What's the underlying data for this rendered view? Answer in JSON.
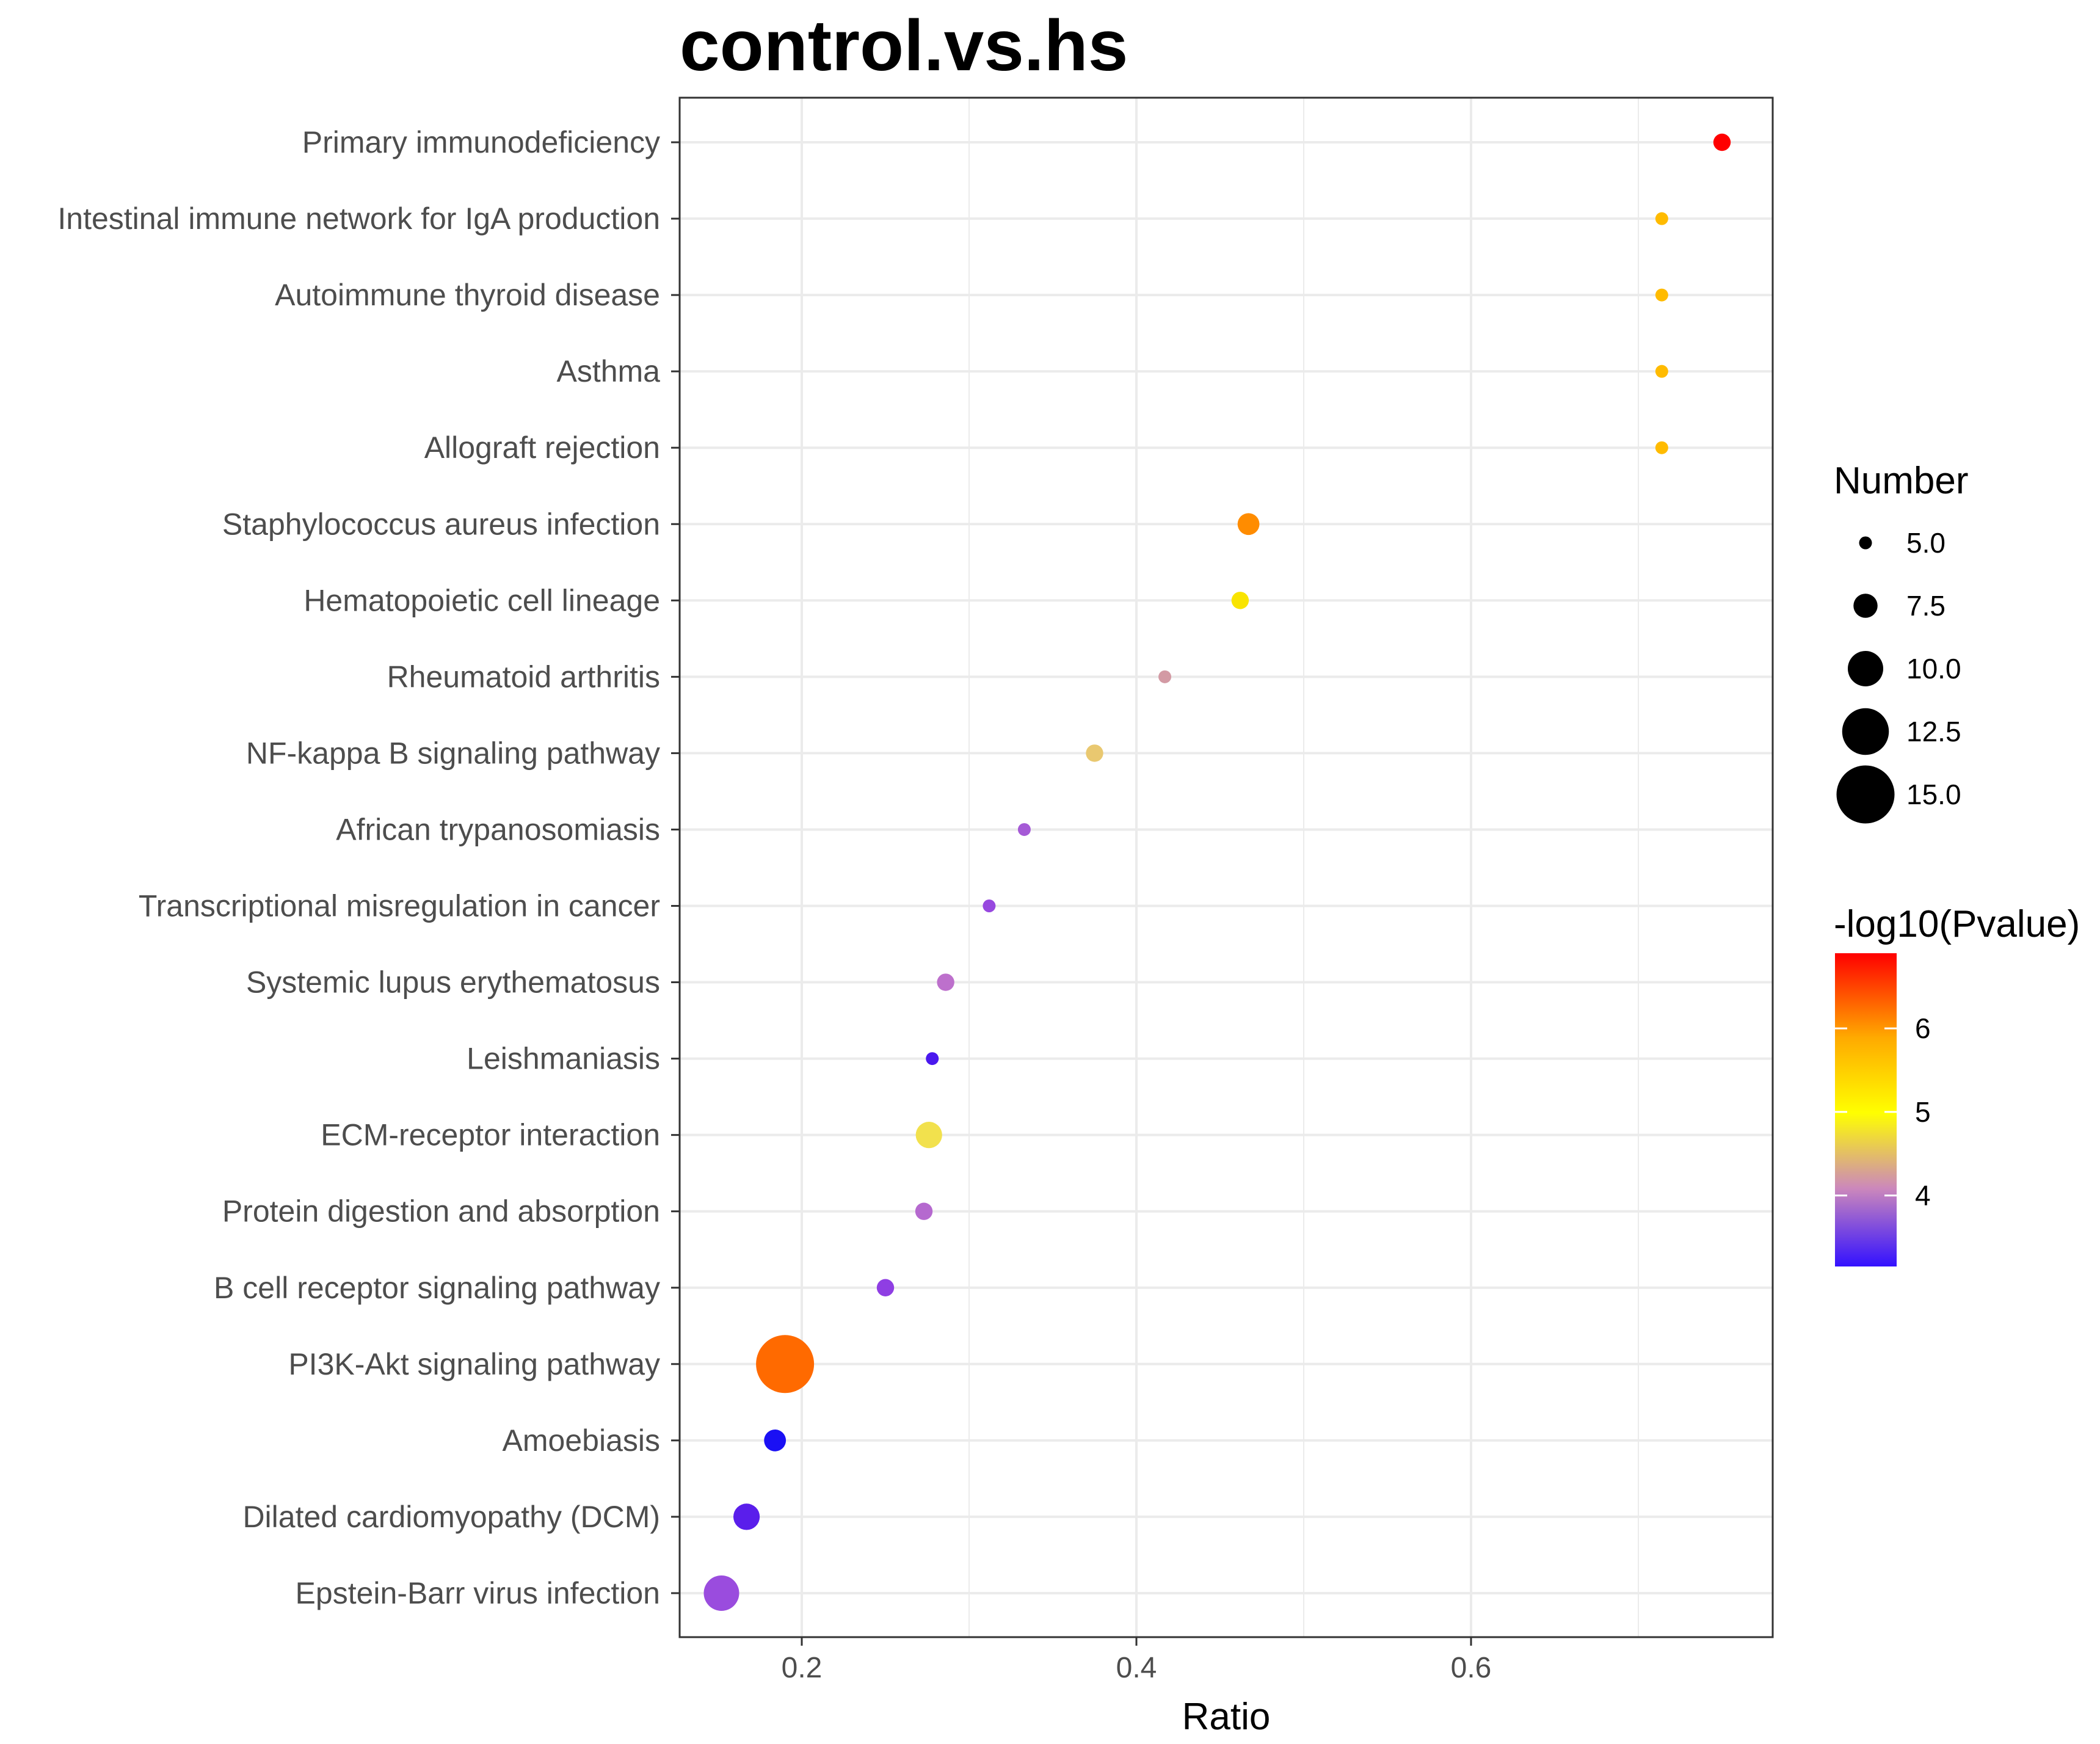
{
  "chart_data": {
    "type": "scatter",
    "title": "control.vs.hs",
    "xlabel": "Ratio",
    "ylabel": "",
    "xlim": [
      0.125,
      0.78
    ],
    "xticks": [
      0.2,
      0.4,
      0.6
    ],
    "xtick_labels": [
      "0.2",
      "0.4",
      "0.6"
    ],
    "grid": true,
    "categories": [
      "Primary immunodeficiency",
      "Intestinal immune network for IgA production",
      "Autoimmune thyroid disease",
      "Asthma",
      "Allograft rejection",
      "Staphylococcus aureus infection",
      "Hematopoietic cell lineage",
      "Rheumatoid arthritis",
      "NF-kappa B signaling pathway",
      "African trypanosomiasis",
      "Transcriptional misregulation in cancer",
      "Systemic lupus erythematosus",
      "Leishmaniasis",
      "ECM-receptor interaction",
      "Protein digestion and absorption",
      "B cell receptor signaling pathway",
      "PI3K-Akt signaling pathway",
      "Amoebiasis",
      "Dilated cardiomyopathy (DCM)",
      "Epstein-Barr virus infection"
    ],
    "points": [
      {
        "term": "Primary immunodeficiency",
        "ratio": 0.75,
        "number": 6,
        "neglog10p": 6.85,
        "color": "#ff0000"
      },
      {
        "term": "Intestinal immune network for IgA production",
        "ratio": 0.714,
        "number": 5,
        "neglog10p": 5.75,
        "color": "#ffbb00"
      },
      {
        "term": "Autoimmune thyroid disease",
        "ratio": 0.714,
        "number": 5,
        "neglog10p": 5.75,
        "color": "#ffbb00"
      },
      {
        "term": "Asthma",
        "ratio": 0.714,
        "number": 5,
        "neglog10p": 5.75,
        "color": "#ffbb00"
      },
      {
        "term": "Allograft rejection",
        "ratio": 0.714,
        "number": 5,
        "neglog10p": 5.75,
        "color": "#ffbb00"
      },
      {
        "term": "Staphylococcus aureus infection",
        "ratio": 0.467,
        "number": 7,
        "neglog10p": 6.2,
        "color": "#ff8c00"
      },
      {
        "term": "Hematopoietic cell lineage",
        "ratio": 0.462,
        "number": 6,
        "neglog10p": 5.15,
        "color": "#f9e400"
      },
      {
        "term": "Rheumatoid arthritis",
        "ratio": 0.417,
        "number": 5,
        "neglog10p": 4.05,
        "color": "#d39aa4"
      },
      {
        "term": "NF-kappa B signaling pathway",
        "ratio": 0.375,
        "number": 6,
        "neglog10p": 4.7,
        "color": "#e9c870"
      },
      {
        "term": "African trypanosomiasis",
        "ratio": 0.333,
        "number": 5,
        "neglog10p": 3.6,
        "color": "#a55ad6"
      },
      {
        "term": "Transcriptional misregulation in cancer",
        "ratio": 0.312,
        "number": 5,
        "neglog10p": 3.55,
        "color": "#9748df"
      },
      {
        "term": "Systemic lupus erythematosus",
        "ratio": 0.286,
        "number": 6,
        "neglog10p": 3.85,
        "color": "#bd70cc"
      },
      {
        "term": "Leishmaniasis",
        "ratio": 0.278,
        "number": 5,
        "neglog10p": 3.25,
        "color": "#4a18ee"
      },
      {
        "term": "ECM-receptor interaction",
        "ratio": 0.276,
        "number": 8,
        "neglog10p": 4.85,
        "color": "#f2e14d"
      },
      {
        "term": "Protein digestion and absorption",
        "ratio": 0.273,
        "number": 6,
        "neglog10p": 3.85,
        "color": "#b569cf"
      },
      {
        "term": "B cell receptor signaling pathway",
        "ratio": 0.25,
        "number": 6,
        "neglog10p": 3.55,
        "color": "#8f3ee3"
      },
      {
        "term": "PI3K-Akt signaling pathway",
        "ratio": 0.19,
        "number": 15,
        "neglog10p": 6.3,
        "color": "#ff6a00"
      },
      {
        "term": "Amoebiasis",
        "ratio": 0.184,
        "number": 7,
        "neglog10p": 3.2,
        "color": "#1a10f4"
      },
      {
        "term": "Dilated cardiomyopathy (DCM)",
        "ratio": 0.167,
        "number": 8,
        "neglog10p": 3.3,
        "color": "#5a1eeb"
      },
      {
        "term": "Epstein-Barr virus infection",
        "ratio": 0.152,
        "number": 10,
        "neglog10p": 3.6,
        "color": "#9a4cde"
      }
    ],
    "size_legend": {
      "title": "Number",
      "values": [
        5.0,
        7.5,
        10.0,
        12.5,
        15.0
      ],
      "labels": [
        "5.0",
        "7.5",
        "10.0",
        "12.5",
        "15.0"
      ]
    },
    "color_legend": {
      "title": "-log10(Pvalue)",
      "range": [
        3.15,
        6.9
      ],
      "ticks": [
        4,
        5,
        6
      ],
      "tick_labels": [
        "4",
        "5",
        "6"
      ],
      "gradient": [
        "#3311ff",
        "#cc88bb",
        "#ffff00",
        "#ffaa00",
        "#ff0000"
      ]
    },
    "legend_position": "right"
  }
}
